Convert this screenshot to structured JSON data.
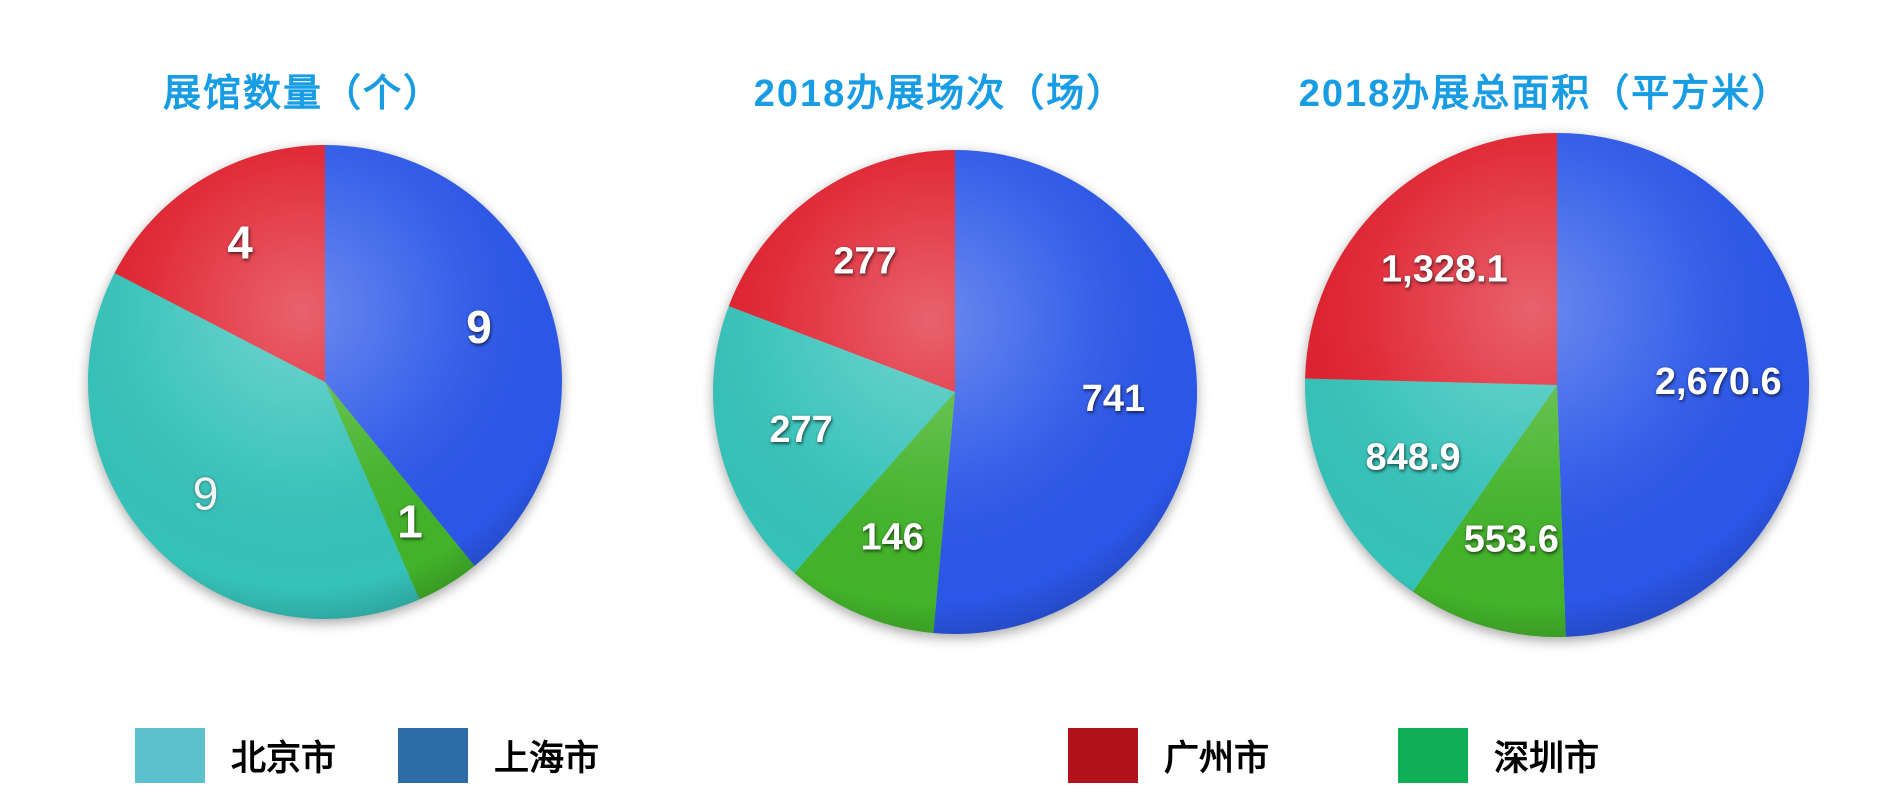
{
  "page": {
    "background": "#ffffff"
  },
  "colors": {
    "title": "#189de4",
    "value_label": "#ffffff",
    "slice": {
      "北京市": "#35c2b9",
      "上海市": "#2b57e8",
      "广州市": "#df1f2d",
      "深圳市": "#43b32a"
    },
    "legend": {
      "北京市": "#5cc0cd",
      "上海市": "#2d6ca6",
      "广州市": "#b1121b",
      "深圳市": "#10ae55"
    }
  },
  "chart_data": [
    {
      "type": "pie",
      "title": "展馆数量（个）",
      "unit": "个",
      "start_angle_deg": 0,
      "direction": "clockwise",
      "slices": [
        {
          "name": "上海市",
          "value": 9,
          "label": "9"
        },
        {
          "name": "深圳市",
          "value": 1,
          "label": "1"
        },
        {
          "name": "北京市",
          "value": 9,
          "label": "9",
          "label_style": "light"
        },
        {
          "name": "广州市",
          "value": 4,
          "label": "4"
        }
      ]
    },
    {
      "type": "pie",
      "title": "2018办展场次（场）",
      "unit": "场",
      "start_angle_deg": 0,
      "direction": "clockwise",
      "slices": [
        {
          "name": "上海市",
          "value": 741,
          "label": "741"
        },
        {
          "name": "深圳市",
          "value": 146,
          "label": "146"
        },
        {
          "name": "北京市",
          "value": 277,
          "label": "277"
        },
        {
          "name": "广州市",
          "value": 277,
          "label": "277"
        }
      ]
    },
    {
      "type": "pie",
      "title": "2018办展总面积（平方米）",
      "unit": "平方米",
      "start_angle_deg": 0,
      "direction": "clockwise",
      "slices": [
        {
          "name": "上海市",
          "value": 2670.6,
          "label": "2,670.6"
        },
        {
          "name": "深圳市",
          "value": 553.6,
          "label": "553.6"
        },
        {
          "name": "北京市",
          "value": 848.9,
          "label": "848.9"
        },
        {
          "name": "广州市",
          "value": 1328.1,
          "label": "1,328.1"
        }
      ]
    }
  ],
  "legend": {
    "items": [
      {
        "name": "北京市"
      },
      {
        "name": "上海市"
      },
      {
        "name": "广州市"
      },
      {
        "name": "深圳市"
      }
    ]
  }
}
